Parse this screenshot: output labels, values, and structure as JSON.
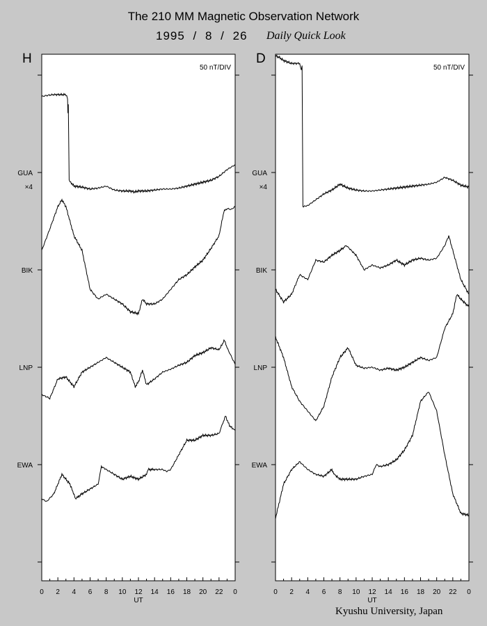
{
  "header": {
    "title": "The 210 MM Magnetic Observation Network",
    "date": "1995 / 8 / 26",
    "subtitle": "Daily Quick Look"
  },
  "footer": {
    "credit": "Kyushu University, Japan"
  },
  "colors": {
    "background": "#c8c8c8",
    "panel": "#ffffff",
    "line": "#000000"
  },
  "chart_data": [
    {
      "type": "line",
      "panel_label": "H",
      "scale_label": "50 nT/DIV",
      "xlabel": "UT",
      "xlim": [
        0,
        24
      ],
      "x_ticks": [
        "0",
        "2",
        "4",
        "6",
        "8",
        "10",
        "12",
        "14",
        "16",
        "18",
        "20",
        "22",
        "0"
      ],
      "grid": false,
      "station_labels": [
        {
          "name": "GUA",
          "note": "×4"
        },
        {
          "name": "BIK"
        },
        {
          "name": "LNP"
        },
        {
          "name": "EWA"
        }
      ],
      "ylim_divisions": [
        -0.2,
        5.25
      ],
      "series": [
        {
          "name": "GUA",
          "points": [
            [
              0,
              0.78
            ],
            [
              0.5,
              0.79
            ],
            [
              1.5,
              0.8
            ],
            [
              2.5,
              0.8
            ],
            [
              3.0,
              0.8
            ],
            [
              3.2,
              0.76
            ],
            [
              3.25,
              0.6
            ],
            [
              3.3,
              0.7
            ],
            [
              3.4,
              -0.08
            ],
            [
              3.6,
              -0.1
            ],
            [
              4,
              -0.14
            ],
            [
              5,
              -0.15
            ],
            [
              6,
              -0.17
            ],
            [
              7,
              -0.16
            ],
            [
              8,
              -0.14
            ],
            [
              9,
              -0.18
            ],
            [
              10,
              -0.19
            ],
            [
              11,
              -0.19
            ],
            [
              11.5,
              -0.2
            ],
            [
              12,
              -0.19
            ],
            [
              13,
              -0.19
            ],
            [
              14,
              -0.18
            ],
            [
              15,
              -0.17
            ],
            [
              16,
              -0.17
            ],
            [
              17,
              -0.16
            ],
            [
              18,
              -0.14
            ],
            [
              19,
              -0.12
            ],
            [
              20,
              -0.1
            ],
            [
              21,
              -0.08
            ],
            [
              22,
              -0.04
            ],
            [
              23,
              0.03
            ],
            [
              24,
              0.08
            ]
          ]
        },
        {
          "name": "BIK",
          "points": [
            [
              0,
              0.2
            ],
            [
              1,
              0.42
            ],
            [
              2,
              0.65
            ],
            [
              2.5,
              0.72
            ],
            [
              3,
              0.65
            ],
            [
              4,
              0.35
            ],
            [
              5,
              0.2
            ],
            [
              6,
              -0.2
            ],
            [
              7,
              -0.3
            ],
            [
              8,
              -0.25
            ],
            [
              9,
              -0.3
            ],
            [
              10,
              -0.35
            ],
            [
              11,
              -0.43
            ],
            [
              12,
              -0.45
            ],
            [
              12.5,
              -0.3
            ],
            [
              13,
              -0.35
            ],
            [
              14,
              -0.35
            ],
            [
              15,
              -0.3
            ],
            [
              16,
              -0.2
            ],
            [
              17,
              -0.1
            ],
            [
              18,
              -0.05
            ],
            [
              19,
              0.03
            ],
            [
              20,
              0.1
            ],
            [
              21,
              0.22
            ],
            [
              22,
              0.35
            ],
            [
              22.6,
              0.6
            ],
            [
              23,
              0.63
            ],
            [
              23.5,
              0.62
            ],
            [
              24,
              0.65
            ]
          ]
        },
        {
          "name": "LNP",
          "points": [
            [
              0,
              -0.28
            ],
            [
              1,
              -0.32
            ],
            [
              2,
              -0.12
            ],
            [
              3,
              -0.1
            ],
            [
              4,
              -0.2
            ],
            [
              5,
              -0.05
            ],
            [
              6,
              0.0
            ],
            [
              7,
              0.05
            ],
            [
              8,
              0.1
            ],
            [
              9,
              0.05
            ],
            [
              10,
              0.0
            ],
            [
              11,
              -0.05
            ],
            [
              11.6,
              -0.2
            ],
            [
              12,
              -0.15
            ],
            [
              12.5,
              -0.03
            ],
            [
              13,
              -0.18
            ],
            [
              14,
              -0.12
            ],
            [
              15,
              -0.05
            ],
            [
              16,
              -0.02
            ],
            [
              17,
              0.02
            ],
            [
              18,
              0.05
            ],
            [
              19,
              0.12
            ],
            [
              20,
              0.15
            ],
            [
              21,
              0.2
            ],
            [
              22,
              0.18
            ],
            [
              22.7,
              0.28
            ],
            [
              23,
              0.2
            ],
            [
              24,
              0.03
            ]
          ]
        },
        {
          "name": "EWA",
          "points": [
            [
              0,
              -0.35
            ],
            [
              0.6,
              -0.38
            ],
            [
              1.5,
              -0.3
            ],
            [
              2.5,
              -0.1
            ],
            [
              3.5,
              -0.2
            ],
            [
              4.2,
              -0.35
            ],
            [
              5,
              -0.3
            ],
            [
              6,
              -0.25
            ],
            [
              7,
              -0.2
            ],
            [
              7.4,
              -0.02
            ],
            [
              8,
              -0.05
            ],
            [
              9,
              -0.1
            ],
            [
              10,
              -0.15
            ],
            [
              11,
              -0.12
            ],
            [
              12,
              -0.15
            ],
            [
              13,
              -0.1
            ],
            [
              13.2,
              -0.05
            ],
            [
              14,
              -0.05
            ],
            [
              15,
              -0.05
            ],
            [
              15.5,
              -0.07
            ],
            [
              16,
              -0.05
            ],
            [
              17,
              0.1
            ],
            [
              18,
              0.25
            ],
            [
              19,
              0.25
            ],
            [
              20,
              0.3
            ],
            [
              21,
              0.3
            ],
            [
              22,
              0.32
            ],
            [
              22.8,
              0.5
            ],
            [
              23.3,
              0.4
            ],
            [
              24,
              0.35
            ]
          ]
        }
      ]
    },
    {
      "type": "line",
      "panel_label": "D",
      "scale_label": "50 nT/DIV",
      "xlabel": "UT",
      "xlim": [
        0,
        24
      ],
      "x_ticks": [
        "0",
        "2",
        "4",
        "6",
        "8",
        "10",
        "12",
        "14",
        "16",
        "18",
        "20",
        "22",
        "0"
      ],
      "grid": false,
      "station_labels": [
        {
          "name": "GUA",
          "note": "×4"
        },
        {
          "name": "BIK"
        },
        {
          "name": "LNP"
        },
        {
          "name": "EWA"
        }
      ],
      "ylim_divisions": [
        -0.2,
        5.25
      ],
      "series": [
        {
          "name": "GUA",
          "points": [
            [
              0,
              1.2
            ],
            [
              0.5,
              1.18
            ],
            [
              1,
              1.15
            ],
            [
              2,
              1.12
            ],
            [
              3,
              1.12
            ],
            [
              3.2,
              1.05
            ],
            [
              3.3,
              1.1
            ],
            [
              3.4,
              -0.35
            ],
            [
              4,
              -0.34
            ],
            [
              5,
              -0.28
            ],
            [
              6,
              -0.22
            ],
            [
              7,
              -0.18
            ],
            [
              8,
              -0.12
            ],
            [
              9,
              -0.16
            ],
            [
              10,
              -0.18
            ],
            [
              11,
              -0.19
            ],
            [
              12,
              -0.19
            ],
            [
              13,
              -0.18
            ],
            [
              14,
              -0.17
            ],
            [
              15,
              -0.16
            ],
            [
              16,
              -0.15
            ],
            [
              17,
              -0.14
            ],
            [
              18,
              -0.13
            ],
            [
              19,
              -0.12
            ],
            [
              20,
              -0.1
            ],
            [
              21,
              -0.05
            ],
            [
              22,
              -0.08
            ],
            [
              23,
              -0.13
            ],
            [
              24,
              -0.15
            ]
          ]
        },
        {
          "name": "BIK",
          "points": [
            [
              0,
              -0.2
            ],
            [
              1,
              -0.33
            ],
            [
              2,
              -0.25
            ],
            [
              3,
              -0.05
            ],
            [
              4,
              -0.1
            ],
            [
              5,
              0.1
            ],
            [
              6,
              0.08
            ],
            [
              7,
              0.15
            ],
            [
              8,
              0.2
            ],
            [
              8.8,
              0.25
            ],
            [
              10,
              0.15
            ],
            [
              11,
              0.0
            ],
            [
              12,
              0.05
            ],
            [
              13,
              0.02
            ],
            [
              14,
              0.05
            ],
            [
              15,
              0.1
            ],
            [
              16,
              0.05
            ],
            [
              17,
              0.1
            ],
            [
              18,
              0.12
            ],
            [
              19,
              0.1
            ],
            [
              20,
              0.12
            ],
            [
              21,
              0.25
            ],
            [
              21.5,
              0.35
            ],
            [
              22,
              0.2
            ],
            [
              23,
              -0.1
            ],
            [
              24,
              -0.25
            ]
          ]
        },
        {
          "name": "LNP",
          "points": [
            [
              0,
              0.31
            ],
            [
              1,
              0.1
            ],
            [
              2,
              -0.2
            ],
            [
              3,
              -0.35
            ],
            [
              4,
              -0.45
            ],
            [
              5,
              -0.55
            ],
            [
              6,
              -0.4
            ],
            [
              7,
              -0.1
            ],
            [
              8,
              0.1
            ],
            [
              9,
              0.2
            ],
            [
              10,
              0.02
            ],
            [
              11,
              -0.01
            ],
            [
              12,
              0.0
            ],
            [
              13,
              -0.03
            ],
            [
              14,
              -0.01
            ],
            [
              15,
              -0.03
            ],
            [
              16,
              0.0
            ],
            [
              17,
              0.05
            ],
            [
              18,
              0.1
            ],
            [
              19,
              0.07
            ],
            [
              20,
              0.1
            ],
            [
              21,
              0.4
            ],
            [
              22,
              0.55
            ],
            [
              22.5,
              0.75
            ],
            [
              23,
              0.7
            ],
            [
              24,
              0.62
            ]
          ]
        },
        {
          "name": "EWA",
          "points": [
            [
              0,
              -0.55
            ],
            [
              1,
              -0.2
            ],
            [
              2,
              -0.05
            ],
            [
              3,
              0.03
            ],
            [
              4,
              -0.05
            ],
            [
              5,
              -0.1
            ],
            [
              6,
              -0.12
            ],
            [
              7,
              -0.05
            ],
            [
              7.3,
              -0.1
            ],
            [
              8,
              -0.15
            ],
            [
              9,
              -0.15
            ],
            [
              10,
              -0.15
            ],
            [
              11,
              -0.12
            ],
            [
              12,
              -0.1
            ],
            [
              12.5,
              0.0
            ],
            [
              13,
              -0.02
            ],
            [
              14,
              0.0
            ],
            [
              15,
              0.05
            ],
            [
              16,
              0.15
            ],
            [
              17,
              0.3
            ],
            [
              18,
              0.65
            ],
            [
              19,
              0.75
            ],
            [
              20,
              0.55
            ],
            [
              21,
              0.1
            ],
            [
              22,
              -0.3
            ],
            [
              23,
              -0.5
            ],
            [
              24,
              -0.52
            ]
          ]
        }
      ]
    }
  ]
}
